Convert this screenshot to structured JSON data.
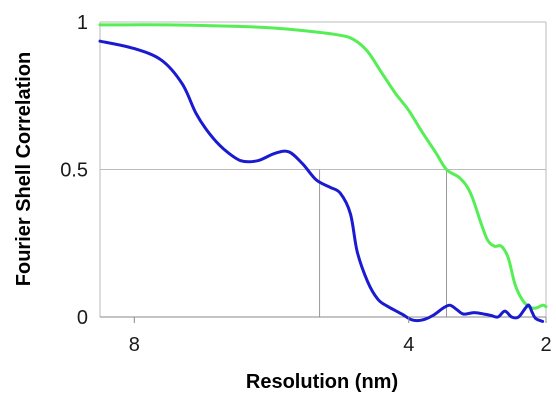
{
  "chart_data": {
    "type": "line",
    "xlabel": "Resolution (nm)",
    "ylabel": "Fourier Shell Correlation",
    "x_ticks": [
      "8",
      "4",
      "2"
    ],
    "y_ticks": [
      "1",
      "0.5",
      "0"
    ],
    "xlim": [
      8.5,
      2
    ],
    "ylim": [
      0,
      1
    ],
    "grid": "horizontal",
    "legend": "none",
    "series": [
      {
        "color": "#55ee55",
        "points": [
          [
            8.5,
            0.99
          ],
          [
            7.5,
            0.99
          ],
          [
            6.5,
            0.985
          ],
          [
            6.0,
            0.98
          ],
          [
            5.5,
            0.97
          ],
          [
            5.0,
            0.955
          ],
          [
            4.8,
            0.94
          ],
          [
            4.6,
            0.9
          ],
          [
            4.4,
            0.83
          ],
          [
            4.2,
            0.76
          ],
          [
            4.0,
            0.7
          ],
          [
            3.8,
            0.625
          ],
          [
            3.6,
            0.555
          ],
          [
            3.45,
            0.5
          ],
          [
            3.25,
            0.47
          ],
          [
            3.1,
            0.42
          ],
          [
            2.95,
            0.32
          ],
          [
            2.85,
            0.26
          ],
          [
            2.75,
            0.24
          ],
          [
            2.65,
            0.24
          ],
          [
            2.55,
            0.2
          ],
          [
            2.45,
            0.11
          ],
          [
            2.35,
            0.06
          ],
          [
            2.25,
            0.035
          ],
          [
            2.15,
            0.03
          ],
          [
            2.05,
            0.04
          ],
          [
            2.0,
            0.035
          ]
        ]
      },
      {
        "color": "#1a1ad1",
        "points": [
          [
            8.5,
            0.935
          ],
          [
            8.0,
            0.91
          ],
          [
            7.6,
            0.87
          ],
          [
            7.3,
            0.79
          ],
          [
            7.1,
            0.69
          ],
          [
            6.9,
            0.62
          ],
          [
            6.7,
            0.57
          ],
          [
            6.45,
            0.53
          ],
          [
            6.2,
            0.53
          ],
          [
            5.95,
            0.555
          ],
          [
            5.75,
            0.56
          ],
          [
            5.55,
            0.52
          ],
          [
            5.35,
            0.465
          ],
          [
            5.15,
            0.44
          ],
          [
            5.0,
            0.42
          ],
          [
            4.85,
            0.35
          ],
          [
            4.75,
            0.22
          ],
          [
            4.6,
            0.12
          ],
          [
            4.45,
            0.06
          ],
          [
            4.3,
            0.035
          ],
          [
            4.1,
            0.01
          ],
          [
            3.95,
            -0.01
          ],
          [
            3.8,
            -0.01
          ],
          [
            3.65,
            0.005
          ],
          [
            3.5,
            0.03
          ],
          [
            3.4,
            0.04
          ],
          [
            3.3,
            0.025
          ],
          [
            3.2,
            0.01
          ],
          [
            3.05,
            0.015
          ],
          [
            2.9,
            0.01
          ],
          [
            2.8,
            0.005
          ],
          [
            2.7,
            0.0
          ],
          [
            2.6,
            0.02
          ],
          [
            2.5,
            0.0
          ],
          [
            2.4,
            0.0
          ],
          [
            2.3,
            0.03
          ],
          [
            2.25,
            0.04
          ],
          [
            2.2,
            0.015
          ],
          [
            2.15,
            -0.005
          ],
          [
            2.05,
            -0.015
          ]
        ]
      }
    ],
    "threshold": 0.5,
    "resolution_markers": [
      {
        "series_index": 1,
        "x": 5.3
      },
      {
        "series_index": 0,
        "x": 3.45
      }
    ]
  }
}
